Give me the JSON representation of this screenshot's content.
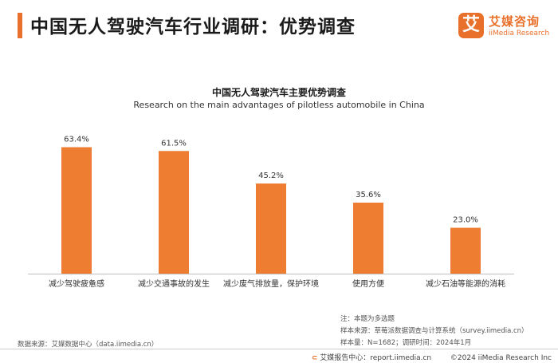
{
  "header": {
    "title": "中国无人驾驶汽车行业调研：优势调查"
  },
  "logo": {
    "mark": "艾",
    "name_cn": "艾媒咨询",
    "name_en": "iiMedia Research"
  },
  "colors": {
    "accent": "#e8702a",
    "bar": "#ee7d31"
  },
  "chart_data": {
    "type": "bar",
    "title": "中国无人驾驶汽车主要优势调查",
    "subtitle": "Research on the main advantages of pilotless automobile in China",
    "categories": [
      "减少驾驶疲惫感",
      "减少交通事故的发生",
      "减少废气排放量，保护环境",
      "使用方便",
      "减少石油等能源的消耗"
    ],
    "values": [
      63.4,
      61.5,
      45.2,
      35.6,
      23.0
    ],
    "value_labels": [
      "63.4%",
      "61.5%",
      "45.2%",
      "35.6%",
      "23.0%"
    ],
    "unit": "%",
    "ylim": [
      0,
      70
    ],
    "grid": false,
    "legend": "none"
  },
  "notes": {
    "note": "注：本题为多选题",
    "sample_source": "样本来源：草莓派数据调查与计算系统（survey.iimedia.cn）",
    "sample_info": "样本量：N=1682；调研时间：2024年1月"
  },
  "source": "数据来源：艾媒数据中心（data.iimedia.cn）",
  "footer": {
    "report_center": "艾媒报告中心：report.iimedia.cn",
    "copyright": "©2024  iiMedia Research  Inc"
  }
}
